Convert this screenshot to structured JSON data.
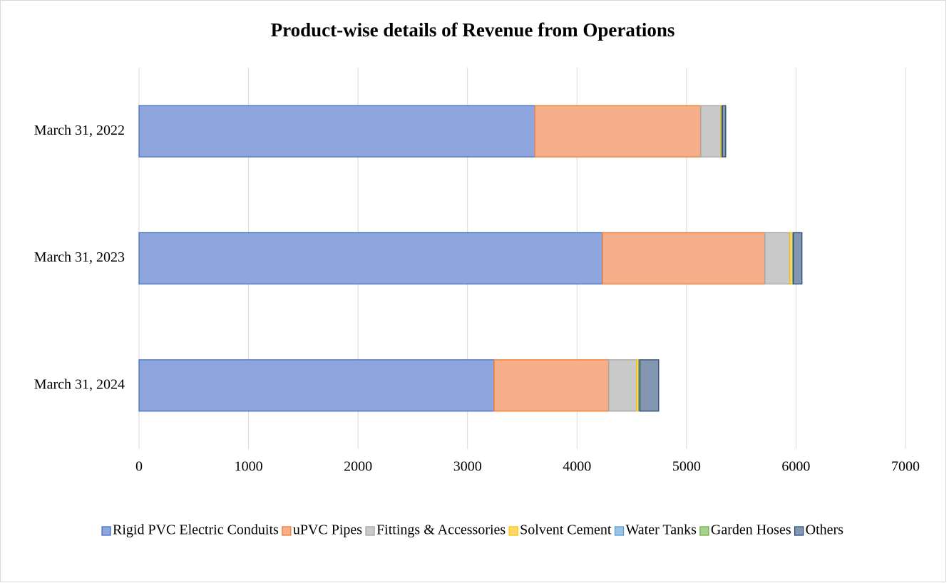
{
  "chart_data": {
    "type": "stacked_barh",
    "title": "Product-wise details of Revenue from Operations",
    "categories": [
      "March 31, 2022",
      "March 31, 2023",
      "March 31, 2024"
    ],
    "series": [
      {
        "name": "Rigid PVC Electric Conduits",
        "color": "#8ea5dd",
        "edge": "#4472c4",
        "values": [
          3615,
          4232,
          3242
        ]
      },
      {
        "name": "uPVC Pipes",
        "color": "#f6ae8b",
        "edge": "#ed7d31",
        "values": [
          1515,
          1484,
          1048
        ]
      },
      {
        "name": "Fittings & Accessories",
        "color": "#c9c9c9",
        "edge": "#a5a5a5",
        "values": [
          182,
          228,
          254
        ]
      },
      {
        "name": "Solvent Cement",
        "color": "#ffd966",
        "edge": "#ffc000",
        "values": [
          8,
          26,
          20
        ]
      },
      {
        "name": "Water Tanks",
        "color": "#9dc3e6",
        "edge": "#5b9bd5",
        "values": [
          4,
          3,
          3
        ]
      },
      {
        "name": "Garden Hoses",
        "color": "#a9d18e",
        "edge": "#70ad47",
        "values": [
          4,
          3,
          8
        ]
      },
      {
        "name": "Others",
        "color": "#8497b0",
        "edge": "#2f4a7a",
        "values": [
          30,
          78,
          171
        ]
      }
    ],
    "xlim": [
      0,
      7000
    ],
    "xticks": [
      0,
      1000,
      2000,
      3000,
      4000,
      5000,
      6000,
      7000
    ],
    "grid": true,
    "legend": "bottom"
  }
}
